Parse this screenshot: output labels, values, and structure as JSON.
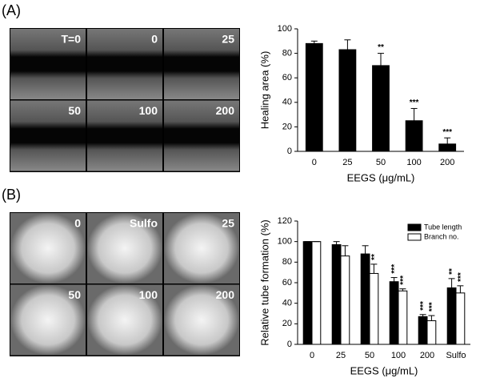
{
  "panel_labels": [
    "(A)",
    "(B)"
  ],
  "images_a": [
    "T=0",
    "0",
    "25",
    "50",
    "100",
    "200"
  ],
  "images_b": [
    "0",
    "Sulfo",
    "25",
    "50",
    "100",
    "200"
  ],
  "chart_data": [
    {
      "type": "bar",
      "categories": [
        "0",
        "25",
        "50",
        "100",
        "200"
      ],
      "values": [
        88,
        83,
        70,
        25,
        6
      ],
      "errors": [
        2,
        8,
        10,
        10,
        5
      ],
      "sig_labels": [
        null,
        null,
        "**",
        "***",
        "***"
      ],
      "color": "#000000",
      "ylabel": "Healing area (%)",
      "xlabel": "EEGS (μg/mL)",
      "ylim": [
        0,
        100
      ],
      "yticks": [
        0,
        20,
        40,
        60,
        80,
        100
      ]
    },
    {
      "type": "grouped_bar",
      "categories": [
        "0",
        "25",
        "50",
        "100",
        "200",
        "Sulfo"
      ],
      "series": [
        {
          "name": "Tube length",
          "color": "#000000",
          "values": [
            100,
            97,
            88,
            61,
            27,
            55
          ],
          "errors": [
            0,
            3,
            8,
            4,
            2,
            9
          ],
          "sig_labels": [
            null,
            null,
            null,
            "***",
            "***",
            "**"
          ]
        },
        {
          "name": "Branch no.",
          "color": "#ffffff",
          "values": [
            100,
            86,
            69,
            52,
            23,
            50
          ],
          "errors": [
            0,
            10,
            9,
            2,
            5,
            7
          ],
          "sig_labels": [
            null,
            null,
            "**",
            "***",
            "***",
            "***"
          ]
        }
      ],
      "ylabel": "Relative tube formation (%)",
      "xlabel": "EEGS (μg/mL)",
      "ylim": [
        0,
        120
      ],
      "yticks": [
        0,
        20,
        40,
        60,
        80,
        100,
        120
      ],
      "legend": "upper right"
    }
  ]
}
